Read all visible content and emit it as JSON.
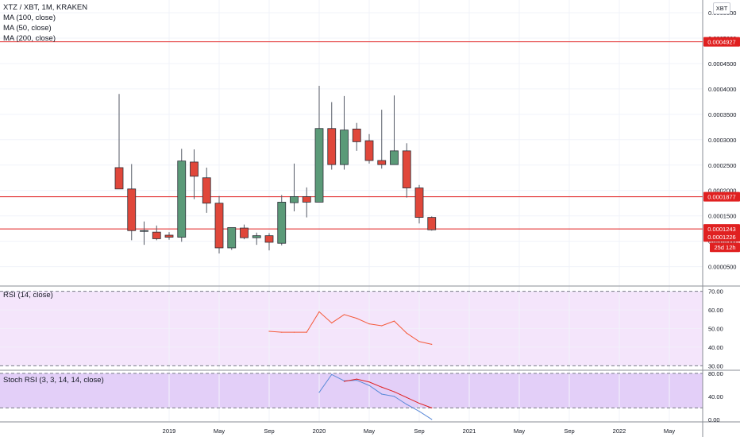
{
  "header": {
    "symbol": "XTZ / XBT, 1M, KRAKEN",
    "ma100": "MA (100, close)",
    "ma50": "MA (50, close)",
    "ma200": "MA (200, close)",
    "currency_button": "XBT"
  },
  "colors": {
    "up": "#5b9a78",
    "down": "#e0473a",
    "hline": "#e02020",
    "rsi": "#f45a3a",
    "stoch_k": "#5b8ad8",
    "stoch_d": "#e02020",
    "rsi_band": "#f4e5fb",
    "stoch_band": "#e3cff8",
    "grid": "#f0f3fa"
  },
  "chart_data": [
    {
      "type": "candlestick",
      "title": "XTZ / XBT, 1M, KRAKEN",
      "x_tick_labels": [
        "2019",
        "May",
        "Sep",
        "2020",
        "May",
        "Sep",
        "2021",
        "May",
        "Sep",
        "2022",
        "May"
      ],
      "y_tick_labels": [
        "0.0000500",
        "0.0001000",
        "0.0001500",
        "0.0002000",
        "0.0002500",
        "0.0003000",
        "0.0003500",
        "0.0004000",
        "0.0004500",
        "0.0005000",
        "0.0005500"
      ],
      "ylim": [
        1.5e-05,
        0.000575
      ],
      "grid": true,
      "price_lines": [
        {
          "value": 0.0004927,
          "label": "0.0004927"
        },
        {
          "value": 0.0001877,
          "label": "0.0001877"
        },
        {
          "value": 0.0001243,
          "label": "0.0001243"
        }
      ],
      "last_price_label": "0.0001226",
      "countdown_label": "25d 12h",
      "candles": [
        {
          "x": "2018-09",
          "o": 0.000245,
          "h": 0.00039,
          "l": 0.000205,
          "c": 0.000203
        },
        {
          "x": "2018-10",
          "o": 0.000203,
          "h": 0.000252,
          "l": 0.000102,
          "c": 0.000121
        },
        {
          "x": "2018-11",
          "o": 0.000121,
          "h": 0.000139,
          "l": 9.3e-05,
          "c": 0.000121
        },
        {
          "x": "2018-12",
          "o": 0.000118,
          "h": 0.000131,
          "l": 0.000102,
          "c": 0.000105
        },
        {
          "x": "2019-01",
          "o": 0.000112,
          "h": 0.000118,
          "l": 0.000103,
          "c": 0.000108
        },
        {
          "x": "2019-02",
          "o": 0.000108,
          "h": 0.000282,
          "l": 9.9e-05,
          "c": 0.000258
        },
        {
          "x": "2019-03",
          "o": 0.000256,
          "h": 0.000281,
          "l": 0.000183,
          "c": 0.000228
        },
        {
          "x": "2019-04",
          "o": 0.000225,
          "h": 0.000245,
          "l": 0.000156,
          "c": 0.000175
        },
        {
          "x": "2019-05",
          "o": 0.000175,
          "h": 0.000189,
          "l": 7.6e-05,
          "c": 8.7e-05
        },
        {
          "x": "2019-06",
          "o": 8.7e-05,
          "h": 0.000126,
          "l": 8.3e-05,
          "c": 0.000127
        },
        {
          "x": "2019-07",
          "o": 0.000126,
          "h": 0.000133,
          "l": 0.000104,
          "c": 0.000107
        },
        {
          "x": "2019-08",
          "o": 0.000107,
          "h": 0.000117,
          "l": 9.3e-05,
          "c": 0.000111
        },
        {
          "x": "2019-09",
          "o": 0.000111,
          "h": 0.000116,
          "l": 8.2e-05,
          "c": 9.8e-05
        },
        {
          "x": "2019-10",
          "o": 9.6e-05,
          "h": 0.000191,
          "l": 9.2e-05,
          "c": 0.000177
        },
        {
          "x": "2019-11",
          "o": 0.000176,
          "h": 0.000253,
          "l": 0.000159,
          "c": 0.000188
        },
        {
          "x": "2019-12",
          "o": 0.000188,
          "h": 0.000206,
          "l": 0.000147,
          "c": 0.000177
        },
        {
          "x": "2020-01",
          "o": 0.000177,
          "h": 0.000406,
          "l": 0.000177,
          "c": 0.000322
        },
        {
          "x": "2020-02",
          "o": 0.000322,
          "h": 0.000374,
          "l": 0.000241,
          "c": 0.000251
        },
        {
          "x": "2020-03",
          "o": 0.000251,
          "h": 0.000386,
          "l": 0.000241,
          "c": 0.000319
        },
        {
          "x": "2020-04",
          "o": 0.000321,
          "h": 0.000333,
          "l": 0.000278,
          "c": 0.000296
        },
        {
          "x": "2020-05",
          "o": 0.000298,
          "h": 0.000311,
          "l": 0.000253,
          "c": 0.000259
        },
        {
          "x": "2020-06",
          "o": 0.000259,
          "h": 0.000359,
          "l": 0.000243,
          "c": 0.000251
        },
        {
          "x": "2020-07",
          "o": 0.000251,
          "h": 0.000387,
          "l": 0.000251,
          "c": 0.000278
        },
        {
          "x": "2020-08",
          "o": 0.000278,
          "h": 0.000293,
          "l": 0.000186,
          "c": 0.000205
        },
        {
          "x": "2020-09",
          "o": 0.000205,
          "h": 0.000211,
          "l": 0.000135,
          "c": 0.000147
        },
        {
          "x": "2020-10",
          "o": 0.000147,
          "h": 0.000149,
          "l": 0.000121,
          "c": 0.0001226
        }
      ]
    },
    {
      "type": "line",
      "title": "RSI (14, close)",
      "y_tick_labels": [
        "30.00",
        "40.00",
        "50.00",
        "60.00",
        "70.00"
      ],
      "ylim": [
        28,
        72
      ],
      "band": [
        30,
        70
      ],
      "series": [
        {
          "color": "#f45a3a",
          "x": [
            "2019-09",
            "2019-10",
            "2019-11",
            "2019-12",
            "2020-01",
            "2020-02",
            "2020-03",
            "2020-04",
            "2020-05",
            "2020-06",
            "2020-07",
            "2020-08",
            "2020-09",
            "2020-10"
          ],
          "values": [
            48.5,
            48,
            48,
            48,
            59,
            53,
            57.5,
            55.5,
            52.5,
            51.5,
            54,
            47.5,
            43,
            41.5
          ]
        }
      ]
    },
    {
      "type": "line",
      "title": "Stoch RSI (3, 3, 14, 14, close)",
      "y_tick_labels": [
        "0.00",
        "40.00",
        "80.00"
      ],
      "ylim": [
        -3,
        84
      ],
      "band": [
        20,
        80
      ],
      "series": [
        {
          "color": "#5b8ad8",
          "x": [
            "2020-01",
            "2020-02",
            "2020-03",
            "2020-04",
            "2020-05",
            "2020-06",
            "2020-07",
            "2020-08",
            "2020-09",
            "2020-10"
          ],
          "values": [
            47,
            78,
            67,
            68,
            59,
            44,
            40,
            26,
            14,
            0
          ]
        },
        {
          "color": "#e02020",
          "x": [
            "2020-03",
            "2020-04",
            "2020-05",
            "2020-06",
            "2020-07",
            "2020-08",
            "2020-09",
            "2020-10"
          ],
          "values": [
            66,
            70,
            65,
            56,
            48,
            38,
            28,
            20
          ]
        }
      ]
    }
  ]
}
